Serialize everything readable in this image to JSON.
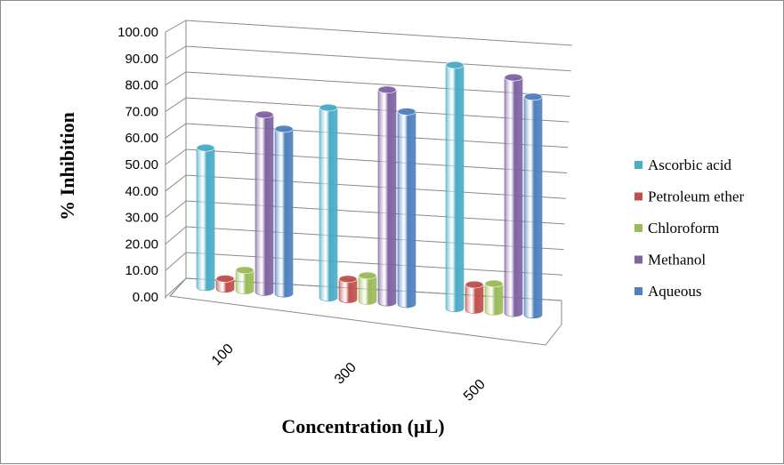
{
  "chart_data": {
    "type": "bar",
    "style": "3d-cylinder",
    "title": "",
    "xlabel": "Concentration  (µL)",
    "ylabel": "% Inhibition",
    "categories": [
      "100",
      "300",
      "500"
    ],
    "ylim": [
      0,
      100
    ],
    "yticks": [
      "0.00",
      "10.00",
      "20.00",
      "30.00",
      "40.00",
      "50.00",
      "60.00",
      "70.00",
      "80.00",
      "90.00",
      "100.00"
    ],
    "grid": true,
    "legend_position": "right",
    "series": [
      {
        "name": "Ascorbic acid",
        "values": [
          55,
          75,
          96
        ],
        "color": "#4bacc6"
      },
      {
        "name": "Petroleum ether",
        "values": [
          4,
          8,
          10
        ],
        "color": "#c0504d"
      },
      {
        "name": "Chloroform",
        "values": [
          8,
          10,
          11
        ],
        "color": "#9bbb59"
      },
      {
        "name": "Methanol",
        "values": [
          70,
          84,
          93
        ],
        "color": "#8064a2"
      },
      {
        "name": "Aqueous",
        "values": [
          65,
          76,
          86
        ],
        "color": "#4f81bd"
      }
    ]
  }
}
